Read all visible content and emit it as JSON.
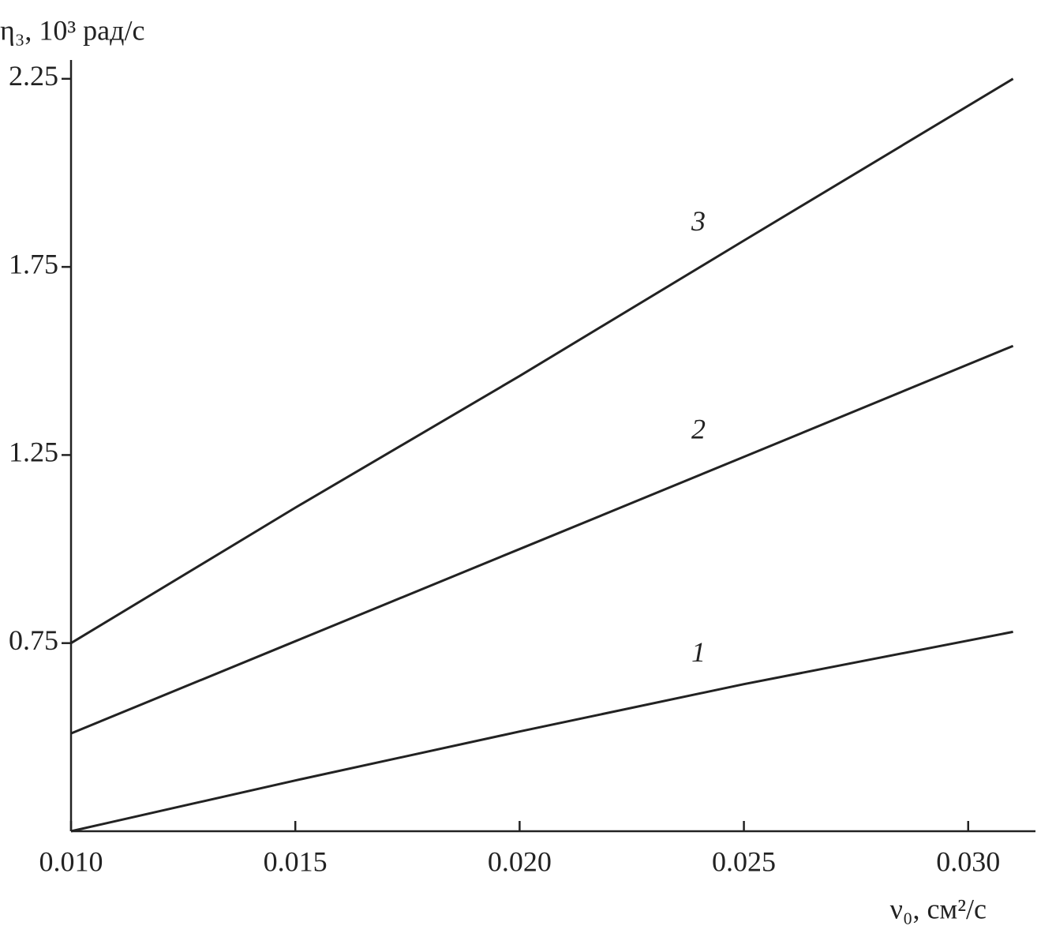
{
  "chart_data": {
    "type": "line",
    "y_label": "η₃, 10³ рад/с",
    "x_label": "ν₀, см²/с",
    "x": [
      0.01,
      0.015,
      0.02,
      0.025,
      0.031
    ],
    "series": [
      {
        "name": "1",
        "color": "#222222",
        "values": [
          0.25,
          0.385,
          0.515,
          0.641,
          0.78
        ]
      },
      {
        "name": "2",
        "color": "#222222",
        "values": [
          0.51,
          0.755,
          1.0,
          1.245,
          1.54
        ]
      },
      {
        "name": "3",
        "color": "#222222",
        "values": [
          0.75,
          1.11,
          1.46,
          1.82,
          2.25
        ]
      }
    ],
    "xlim": [
      0.01,
      0.0315
    ],
    "ylim": [
      0.25,
      2.3
    ],
    "xticks": [
      {
        "value": 0.01,
        "label": "0.010"
      },
      0.015,
      {
        "value": 0.02,
        "label": "0.020"
      },
      0.025,
      {
        "value": 0.03,
        "label": "0.030"
      }
    ],
    "yticks": [
      0.75,
      1.25,
      1.75,
      2.25
    ],
    "grid": false
  }
}
